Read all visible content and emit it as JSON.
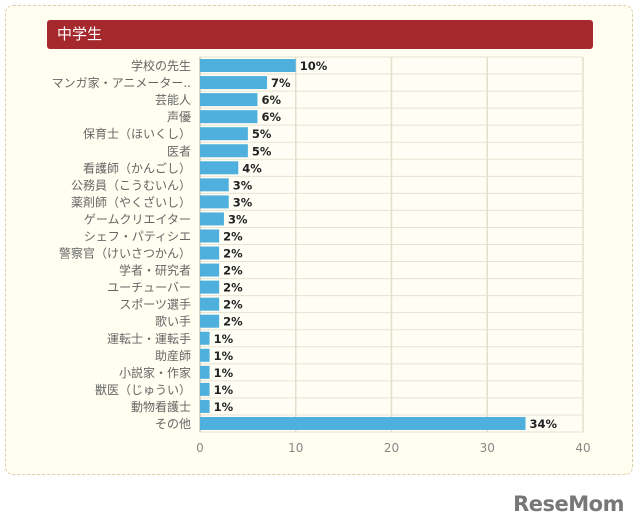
{
  "header": {
    "title": "中学生"
  },
  "watermark": "ReseMom",
  "chart_data": {
    "type": "bar",
    "orientation": "horizontal",
    "title": "中学生",
    "categories": [
      "学校の先生",
      "マンガ家・アニメーター..",
      "芸能人",
      "声優",
      "保育士（ほいくし）",
      "医者",
      "看護師（かんごし）",
      "公務員（こうむいん）",
      "薬剤師（やくざいし）",
      "ゲームクリエイター",
      "シェフ・パティシエ",
      "警察官（けいさつかん）",
      "学者・研究者",
      "ユーチューバー",
      "スポーツ選手",
      "歌い手",
      "運転士・運転手",
      "助産師",
      "小説家・作家",
      "獣医（じゅうい）",
      "動物看護士",
      "その他"
    ],
    "values": [
      10,
      7,
      6,
      6,
      5,
      5,
      4,
      3,
      3,
      2.5,
      2,
      2,
      2,
      2,
      2,
      2,
      1,
      1,
      1,
      1,
      1,
      34
    ],
    "labels": [
      "10%",
      "7%",
      "6%",
      "6%",
      "5%",
      "5%",
      "4%",
      "3%",
      "3%",
      "3%",
      "2%",
      "2%",
      "2%",
      "2%",
      "2%",
      "2%",
      "1%",
      "1%",
      "1%",
      "1%",
      "1%",
      "34%"
    ],
    "xlim": [
      0,
      40
    ],
    "xticks": [
      "0",
      "10",
      "20",
      "30",
      "40"
    ],
    "grid": true,
    "bar_color": "#4fb0dd",
    "header_color": "#a5282d"
  }
}
